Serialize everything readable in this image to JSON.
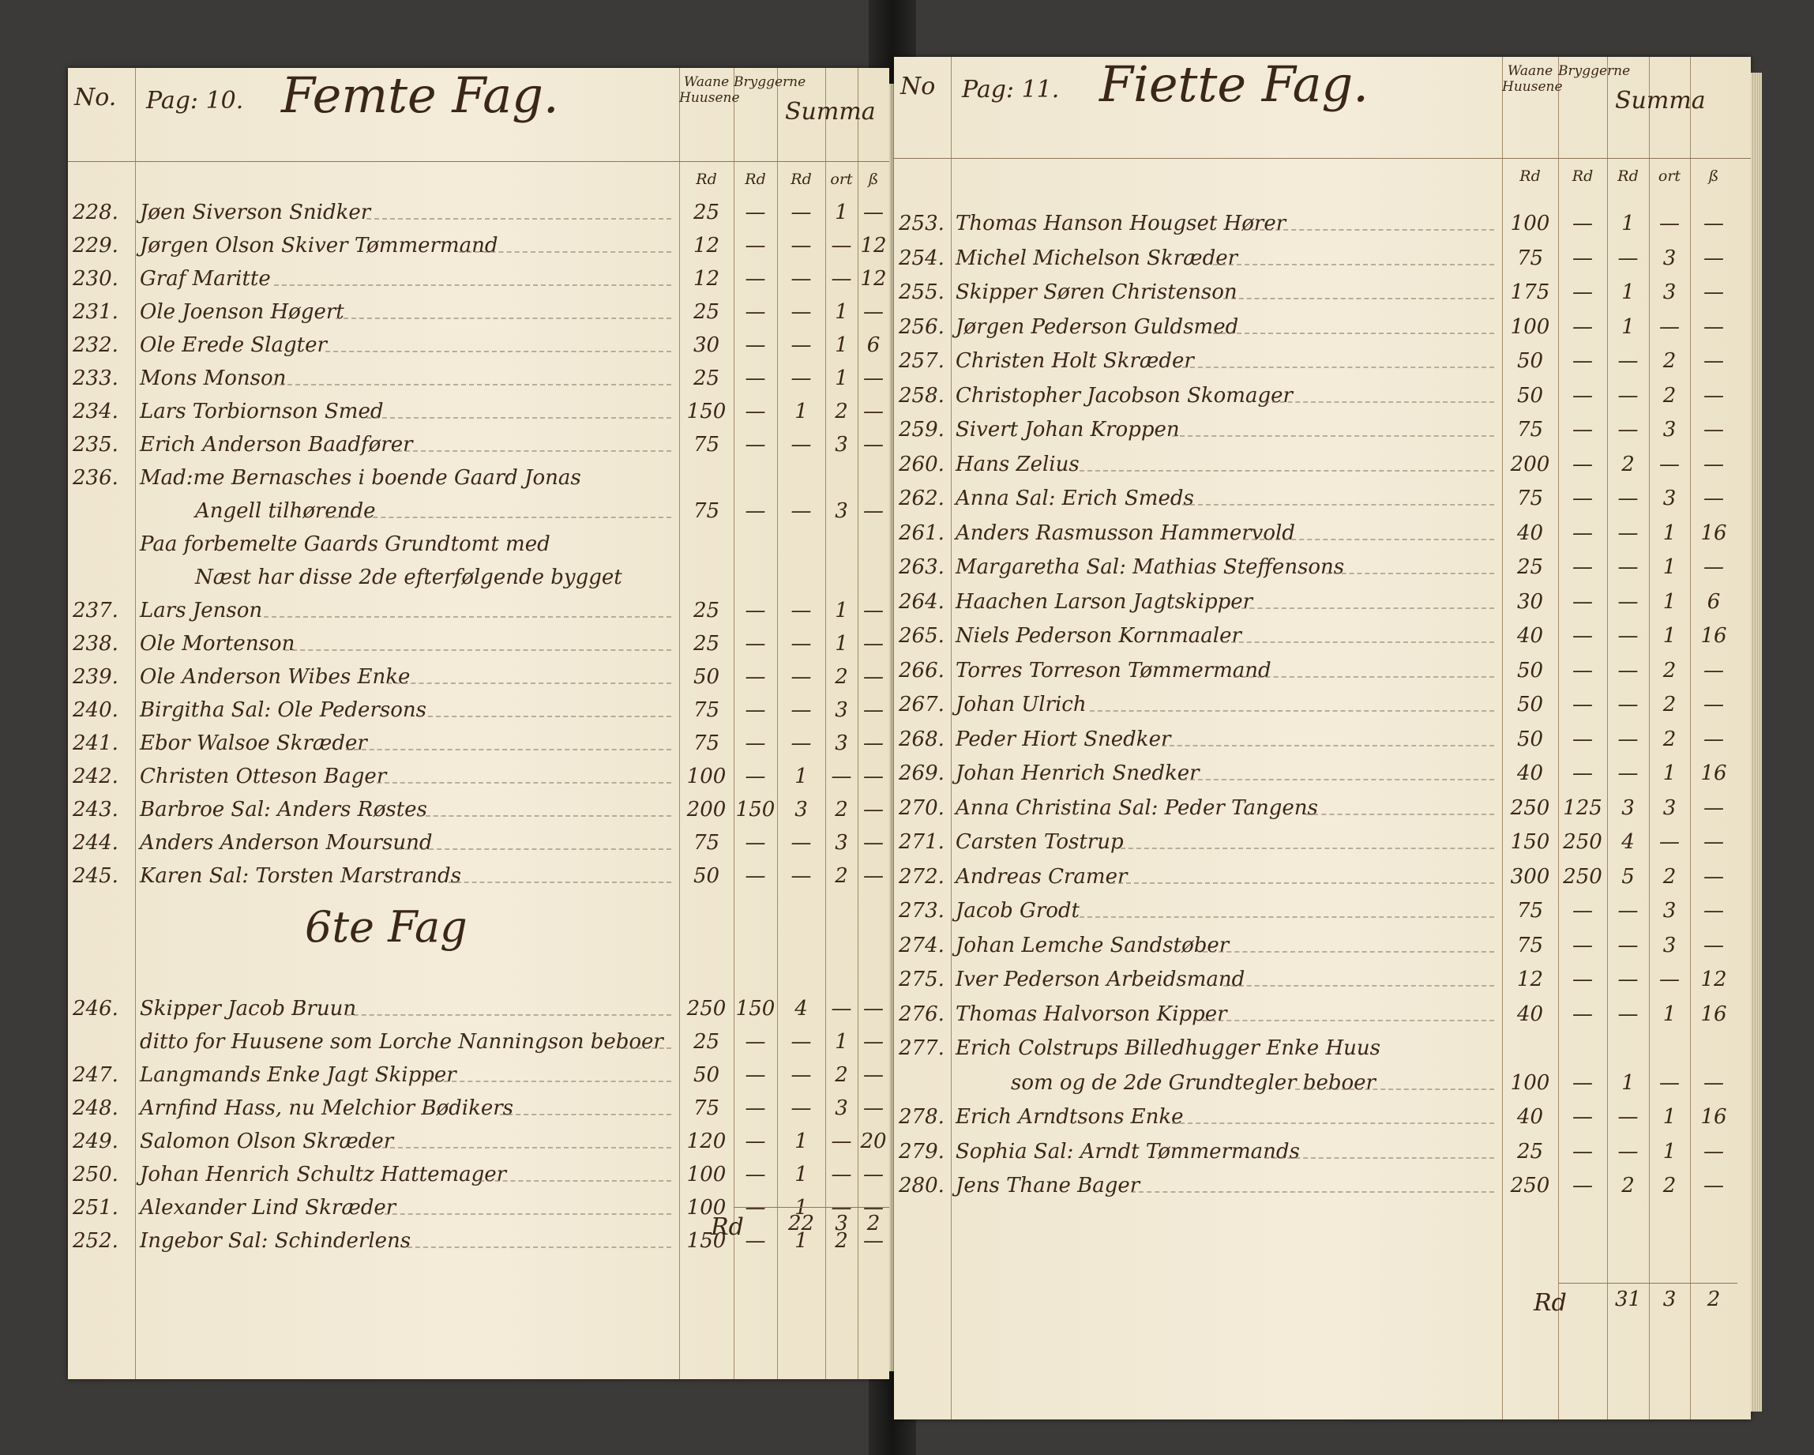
{
  "left_page": {
    "no_label": "No.",
    "page_label": "Pag: 10.",
    "title": "Femte Fag.",
    "col_houses": "Waane Huusene",
    "col_brew": "Bryggerne",
    "col_sum": "Summa",
    "units": [
      "Rd",
      "Rd",
      "Rd",
      "ort",
      "ß"
    ],
    "entries": [
      {
        "no": "228.",
        "lines": [
          "Jøen Siverson Snidker"
        ],
        "houses": "25",
        "brew": "",
        "rd": "",
        "ort": "1",
        "s": ""
      },
      {
        "no": "229.",
        "lines": [
          "Jørgen Olson Skiver Tømmermand"
        ],
        "houses": "12",
        "brew": "",
        "rd": "",
        "ort": "",
        "s": "12"
      },
      {
        "no": "230.",
        "lines": [
          "Graf Maritte"
        ],
        "houses": "12",
        "brew": "",
        "rd": "",
        "ort": "",
        "s": "12"
      },
      {
        "no": "231.",
        "lines": [
          "Ole Joenson Høgert"
        ],
        "houses": "25",
        "brew": "",
        "rd": "",
        "ort": "1",
        "s": ""
      },
      {
        "no": "232.",
        "lines": [
          "Ole Erede Slagter"
        ],
        "houses": "30",
        "brew": "",
        "rd": "",
        "ort": "1",
        "s": "6"
      },
      {
        "no": "233.",
        "lines": [
          "Mons Monson"
        ],
        "houses": "25",
        "brew": "",
        "rd": "",
        "ort": "1",
        "s": ""
      },
      {
        "no": "234.",
        "lines": [
          "Lars Torbiornson Smed"
        ],
        "houses": "150",
        "brew": "",
        "rd": "1",
        "ort": "2",
        "s": ""
      },
      {
        "no": "235.",
        "lines": [
          "Erich Anderson Baadfører"
        ],
        "houses": "75",
        "brew": "",
        "rd": "",
        "ort": "3",
        "s": ""
      },
      {
        "no": "236.",
        "lines": [
          "Mad:me Bernasches i boende Gaard Jonas",
          "Angell tilhørende"
        ],
        "houses": "75",
        "brew": "",
        "rd": "",
        "ort": "3",
        "s": ""
      },
      {
        "no": "",
        "lines": [
          "Paa forbemelte Gaards Grundtomt med",
          "Næst har disse 2de efterfølgende bygget"
        ],
        "houses": null,
        "brew": null,
        "rd": null,
        "ort": null,
        "s": null
      },
      {
        "no": "237.",
        "lines": [
          "Lars Jenson"
        ],
        "houses": "25",
        "brew": "",
        "rd": "",
        "ort": "1",
        "s": ""
      },
      {
        "no": "238.",
        "lines": [
          "Ole Mortenson"
        ],
        "houses": "25",
        "brew": "",
        "rd": "",
        "ort": "1",
        "s": ""
      },
      {
        "no": "239.",
        "lines": [
          "Ole Anderson Wibes Enke"
        ],
        "houses": "50",
        "brew": "",
        "rd": "",
        "ort": "2",
        "s": ""
      },
      {
        "no": "240.",
        "lines": [
          "Birgitha Sal: Ole Pedersons"
        ],
        "houses": "75",
        "brew": "",
        "rd": "",
        "ort": "3",
        "s": ""
      },
      {
        "no": "241.",
        "lines": [
          "Ebor Walsoe Skræder"
        ],
        "houses": "75",
        "brew": "",
        "rd": "",
        "ort": "3",
        "s": ""
      },
      {
        "no": "242.",
        "lines": [
          "Christen Otteson Bager"
        ],
        "houses": "100",
        "brew": "",
        "rd": "1",
        "ort": "",
        "s": ""
      },
      {
        "no": "243.",
        "lines": [
          "Barbroe Sal: Anders Røstes"
        ],
        "houses": "200",
        "brew": "150",
        "rd": "3",
        "ort": "2",
        "s": ""
      },
      {
        "no": "244.",
        "lines": [
          "Anders Anderson Moursund"
        ],
        "houses": "75",
        "brew": "",
        "rd": "",
        "ort": "3",
        "s": ""
      },
      {
        "no": "245.",
        "lines": [
          "Karen Sal: Torsten Marstrands"
        ],
        "houses": "50",
        "brew": "",
        "rd": "",
        "ort": "2",
        "s": ""
      },
      {
        "heading": "6te Fag"
      },
      {
        "no": "246.",
        "lines": [
          "Skipper Jacob Bruun"
        ],
        "houses": "250",
        "brew": "150",
        "rd": "4",
        "ort": "",
        "s": ""
      },
      {
        "no": "",
        "lines": [
          "ditto for Huusene som Lorche Nanningson beboer"
        ],
        "houses": "25",
        "brew": "",
        "rd": "",
        "ort": "1",
        "s": ""
      },
      {
        "no": "247.",
        "lines": [
          "Langmands Enke Jagt Skipper"
        ],
        "houses": "50",
        "brew": "",
        "rd": "",
        "ort": "2",
        "s": ""
      },
      {
        "no": "248.",
        "lines": [
          "Arnfind Hass, nu Melchior Bødikers"
        ],
        "houses": "75",
        "brew": "",
        "rd": "",
        "ort": "3",
        "s": ""
      },
      {
        "no": "249.",
        "lines": [
          "Salomon Olson Skræder"
        ],
        "houses": "120",
        "brew": "",
        "rd": "1",
        "ort": "",
        "s": "20"
      },
      {
        "no": "250.",
        "lines": [
          "Johan Henrich Schultz Hattemager"
        ],
        "houses": "100",
        "brew": "",
        "rd": "1",
        "ort": "",
        "s": ""
      },
      {
        "no": "251.",
        "lines": [
          "Alexander Lind Skræder"
        ],
        "houses": "100",
        "brew": "",
        "rd": "1",
        "ort": "",
        "s": ""
      },
      {
        "no": "252.",
        "lines": [
          "Ingebor Sal: Schinderlens"
        ],
        "houses": "150",
        "brew": "",
        "rd": "1",
        "ort": "2",
        "s": ""
      }
    ],
    "total": {
      "label": "Rd",
      "rd": "22",
      "ort": "3",
      "s": "2"
    }
  },
  "right_page": {
    "no_label": "No",
    "page_label": "Pag: 11.",
    "title": "Fiette Fag.",
    "col_houses": "Waane Huusene",
    "col_brew": "Bryggerne",
    "col_sum": "Summa",
    "units": [
      "Rd",
      "Rd",
      "Rd",
      "ort",
      "ß"
    ],
    "entries": [
      {
        "no": "253.",
        "lines": [
          "Thomas Hanson Hougset Hører"
        ],
        "houses": "100",
        "brew": "",
        "rd": "1",
        "ort": "",
        "s": ""
      },
      {
        "no": "254.",
        "lines": [
          "Michel Michelson Skræder"
        ],
        "houses": "75",
        "brew": "",
        "rd": "",
        "ort": "3",
        "s": ""
      },
      {
        "no": "255.",
        "lines": [
          "Skipper Søren Christenson"
        ],
        "houses": "175",
        "brew": "",
        "rd": "1",
        "ort": "3",
        "s": ""
      },
      {
        "no": "256.",
        "lines": [
          "Jørgen Pederson Guldsmed"
        ],
        "houses": "100",
        "brew": "",
        "rd": "1",
        "ort": "",
        "s": ""
      },
      {
        "no": "257.",
        "lines": [
          "Christen Holt Skræder"
        ],
        "houses": "50",
        "brew": "",
        "rd": "",
        "ort": "2",
        "s": ""
      },
      {
        "no": "258.",
        "lines": [
          "Christopher Jacobson Skomager"
        ],
        "houses": "50",
        "brew": "",
        "rd": "",
        "ort": "2",
        "s": ""
      },
      {
        "no": "259.",
        "lines": [
          "Sivert Johan Kroppen"
        ],
        "houses": "75",
        "brew": "",
        "rd": "",
        "ort": "3",
        "s": ""
      },
      {
        "no": "260.",
        "lines": [
          "Hans Zelius"
        ],
        "houses": "200",
        "brew": "",
        "rd": "2",
        "ort": "",
        "s": ""
      },
      {
        "no": "262.",
        "lines": [
          "Anna Sal: Erich Smeds"
        ],
        "houses": "75",
        "brew": "",
        "rd": "",
        "ort": "3",
        "s": ""
      },
      {
        "no": "261.",
        "lines": [
          "Anders Rasmusson Hammervold"
        ],
        "houses": "40",
        "brew": "",
        "rd": "",
        "ort": "1",
        "s": "16"
      },
      {
        "no": "263.",
        "lines": [
          "Margaretha Sal: Mathias Steffensons"
        ],
        "houses": "25",
        "brew": "",
        "rd": "",
        "ort": "1",
        "s": ""
      },
      {
        "no": "264.",
        "lines": [
          "Haachen Larson Jagtskipper"
        ],
        "houses": "30",
        "brew": "",
        "rd": "",
        "ort": "1",
        "s": "6"
      },
      {
        "no": "265.",
        "lines": [
          "Niels Pederson Kornmaaler"
        ],
        "houses": "40",
        "brew": "",
        "rd": "",
        "ort": "1",
        "s": "16"
      },
      {
        "no": "266.",
        "lines": [
          "Torres Torreson Tømmermand"
        ],
        "houses": "50",
        "brew": "",
        "rd": "",
        "ort": "2",
        "s": ""
      },
      {
        "no": "267.",
        "lines": [
          "Johan Ulrich"
        ],
        "houses": "50",
        "brew": "",
        "rd": "",
        "ort": "2",
        "s": ""
      },
      {
        "no": "268.",
        "lines": [
          "Peder Hiort Snedker"
        ],
        "houses": "50",
        "brew": "",
        "rd": "",
        "ort": "2",
        "s": ""
      },
      {
        "no": "269.",
        "lines": [
          "Johan Henrich Snedker"
        ],
        "houses": "40",
        "brew": "",
        "rd": "",
        "ort": "1",
        "s": "16"
      },
      {
        "no": "270.",
        "lines": [
          "Anna Christina Sal: Peder Tangens"
        ],
        "houses": "250",
        "brew": "125",
        "rd": "3",
        "ort": "3",
        "s": ""
      },
      {
        "no": "271.",
        "lines": [
          "Carsten Tostrup"
        ],
        "houses": "150",
        "brew": "250",
        "rd": "4",
        "ort": "",
        "s": ""
      },
      {
        "no": "272.",
        "lines": [
          "Andreas Cramer"
        ],
        "houses": "300",
        "brew": "250",
        "rd": "5",
        "ort": "2",
        "s": ""
      },
      {
        "no": "273.",
        "lines": [
          "Jacob Grodt"
        ],
        "houses": "75",
        "brew": "",
        "rd": "",
        "ort": "3",
        "s": ""
      },
      {
        "no": "274.",
        "lines": [
          "Johan Lemche Sandstøber"
        ],
        "houses": "75",
        "brew": "",
        "rd": "",
        "ort": "3",
        "s": ""
      },
      {
        "no": "275.",
        "lines": [
          "Iver Pederson Arbeidsmand"
        ],
        "houses": "12",
        "brew": "",
        "rd": "",
        "ort": "",
        "s": "12"
      },
      {
        "no": "276.",
        "lines": [
          "Thomas Halvorson Kipper"
        ],
        "houses": "40",
        "brew": "",
        "rd": "",
        "ort": "1",
        "s": "16"
      },
      {
        "no": "277.",
        "lines": [
          "Erich Colstrups Billedhugger Enke Huus",
          "som og de 2de Grundtegler beboer"
        ],
        "houses": "100",
        "brew": "",
        "rd": "1",
        "ort": "",
        "s": ""
      },
      {
        "no": "278.",
        "lines": [
          "Erich Arndtsons Enke"
        ],
        "houses": "40",
        "brew": "",
        "rd": "",
        "ort": "1",
        "s": "16"
      },
      {
        "no": "279.",
        "lines": [
          "Sophia Sal: Arndt Tømmermands"
        ],
        "houses": "25",
        "brew": "",
        "rd": "",
        "ort": "1",
        "s": ""
      },
      {
        "no": "280.",
        "lines": [
          "Jens Thane Bager"
        ],
        "houses": "250",
        "brew": "",
        "rd": "2",
        "ort": "2",
        "s": ""
      }
    ],
    "total": {
      "label": "Rd",
      "rd": "31",
      "ort": "3",
      "s": "2"
    }
  },
  "colors": {
    "ink": "#3a2717",
    "paper": "#f2e9d4",
    "background": "#3b3a38"
  }
}
